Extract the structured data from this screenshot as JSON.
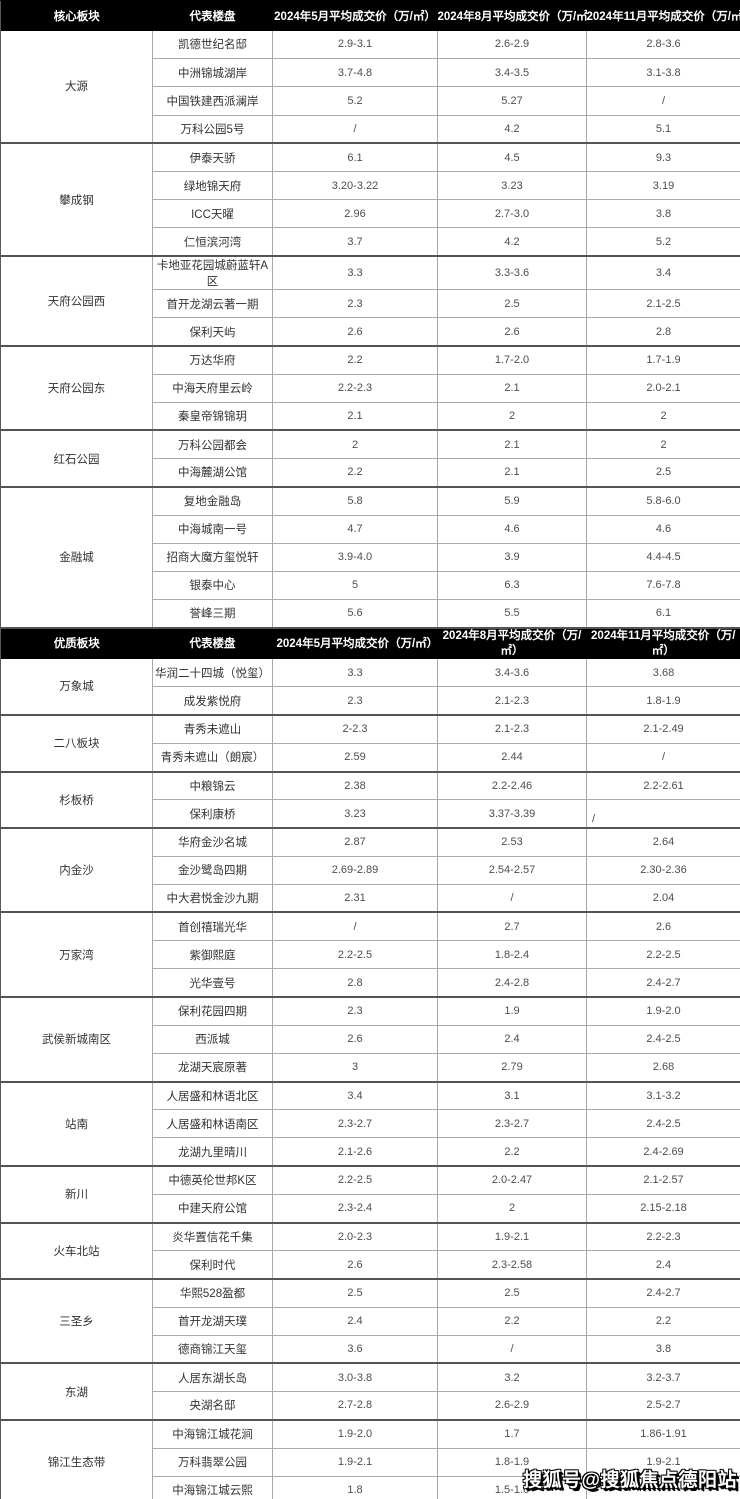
{
  "colors": {
    "header_bg": "#000000",
    "header_text": "#ffffff",
    "body_text": "#404040",
    "border_light": "#ababab",
    "border_dark": "#545454"
  },
  "watermark": "搜狐号@搜狐焦点德阳站",
  "sections": [
    {
      "id": "core",
      "headers": [
        "核心板块",
        "代表楼盘",
        "2024年5月平均成交价（万/㎡）",
        "2024年8月平均成交价（万/㎡）",
        "2024年11月平均成交价（万/㎡）"
      ],
      "groups": [
        {
          "district": "大源",
          "rows": [
            {
              "name": "凯德世纪名邸",
              "values": [
                "2.9-3.1",
                "2.6-2.9",
                "2.8-3.6"
              ]
            },
            {
              "name": "中洲锦城湖岸",
              "values": [
                "3.7-4.8",
                "3.4-3.5",
                "3.1-3.8"
              ]
            },
            {
              "name": "中国铁建西派澜岸",
              "values": [
                "5.2",
                "5.27",
                "/"
              ]
            },
            {
              "name": "万科公园5号",
              "values": [
                "/",
                "4.2",
                "5.1"
              ]
            }
          ]
        },
        {
          "district": "攀成钢",
          "rows": [
            {
              "name": "伊泰天骄",
              "values": [
                "6.1",
                "4.5",
                "9.3"
              ]
            },
            {
              "name": "绿地锦天府",
              "values": [
                "3.20-3.22",
                "3.23",
                "3.19"
              ]
            },
            {
              "name": "ICC天曜",
              "values": [
                "2.96",
                "2.7-3.0",
                "3.8"
              ]
            },
            {
              "name": "仁恒滨河湾",
              "values": [
                "3.7",
                "4.2",
                "5.2"
              ]
            }
          ]
        },
        {
          "district": "天府公园西",
          "rows": [
            {
              "name": "卡地亚花园城蔚蓝轩A区",
              "values": [
                "3.3",
                "3.3-3.6",
                "3.4"
              ]
            },
            {
              "name": "首开龙湖云著一期",
              "values": [
                "2.3",
                "2.5",
                "2.1-2.5"
              ]
            },
            {
              "name": "保利天屿",
              "values": [
                "2.6",
                "2.6",
                "2.8"
              ]
            }
          ]
        },
        {
          "district": "天府公园东",
          "rows": [
            {
              "name": "万达华府",
              "values": [
                "2.2",
                "1.7-2.0",
                "1.7-1.9"
              ]
            },
            {
              "name": "中海天府里云岭",
              "values": [
                "2.2-2.3",
                "2.1",
                "2.0-2.1"
              ]
            },
            {
              "name": "秦皇帝锦锦玥",
              "values": [
                "2.1",
                "2",
                "2"
              ]
            }
          ]
        },
        {
          "district": "红石公园",
          "rows": [
            {
              "name": "万科公园都会",
              "values": [
                "2",
                "2.1",
                "2"
              ]
            },
            {
              "name": "中海麓湖公馆",
              "values": [
                "2.2",
                "2.1",
                "2.5"
              ]
            }
          ]
        },
        {
          "district": "金融城",
          "rows": [
            {
              "name": "复地金融岛",
              "values": [
                "5.8",
                "5.9",
                "5.8-6.0"
              ]
            },
            {
              "name": "中海城南一号",
              "values": [
                "4.7",
                "4.6",
                "4.6"
              ]
            },
            {
              "name": "招商大魔方玺悦轩",
              "values": [
                "3.9-4.0",
                "3.9",
                "4.4-4.5"
              ]
            },
            {
              "name": "银泰中心",
              "values": [
                "5",
                "6.3",
                "7.6-7.8"
              ]
            },
            {
              "name": "誉峰三期",
              "values": [
                "5.6",
                "5.5",
                "6.1"
              ]
            }
          ]
        }
      ]
    },
    {
      "id": "quality",
      "headers": [
        "优质板块",
        "代表楼盘",
        "2024年5月平均成交价（万/㎡）",
        "2024年8月平均成交价（万/㎡）",
        "2024年11月平均成交价（万/㎡）"
      ],
      "groups": [
        {
          "district": "万象城",
          "rows": [
            {
              "name": "华润二十四城（悦玺）",
              "values": [
                "3.3",
                "3.4-3.6",
                "3.68"
              ]
            },
            {
              "name": "成发紫悦府",
              "values": [
                "2.3",
                "2.1-2.3",
                "1.8-1.9"
              ]
            }
          ]
        },
        {
          "district": "二八板块",
          "rows": [
            {
              "name": "青秀未遮山",
              "values": [
                "2-2.3",
                "2.1-2.3",
                "2.1-2.49"
              ]
            },
            {
              "name": "青秀未遮山（朗宸）",
              "values": [
                "2.59",
                "2.44",
                "/"
              ]
            }
          ]
        },
        {
          "district": "杉板桥",
          "rows": [
            {
              "name": "中粮锦云",
              "values": [
                "2.38",
                "2.2-2.46",
                "2.2-2.61"
              ]
            },
            {
              "name": "保利康桥",
              "values": [
                "3.23",
                "3.37-3.39",
                {
                  "text": "/",
                  "align": "left-bottom"
                }
              ]
            }
          ]
        },
        {
          "district": "内金沙",
          "rows": [
            {
              "name": "华府金沙名城",
              "values": [
                "2.87",
                "2.53",
                "2.64"
              ]
            },
            {
              "name": "金沙鹭岛四期",
              "values": [
                "2.69-2.89",
                "2.54-2.57",
                "2.30-2.36"
              ]
            },
            {
              "name": "中大君悦金沙九期",
              "values": [
                "2.31",
                "/",
                "2.04"
              ]
            }
          ]
        },
        {
          "district": "万家湾",
          "rows": [
            {
              "name": "首创禧瑞光华",
              "values": [
                "/",
                "2.7",
                "2.6"
              ]
            },
            {
              "name": "紫御熙庭",
              "values": [
                "2.2-2.5",
                "1.8-2.4",
                "2.2-2.5"
              ]
            },
            {
              "name": "光华壹号",
              "values": [
                "2.8",
                "2.4-2.8",
                "2.4-2.7"
              ]
            }
          ]
        },
        {
          "district": "武侯新城南区",
          "rows": [
            {
              "name": "保利花园四期",
              "values": [
                "2.3",
                "1.9",
                "1.9-2.0"
              ]
            },
            {
              "name": "西派城",
              "values": [
                "2.6",
                "2.4",
                "2.4-2.5"
              ]
            },
            {
              "name": "龙湖天宸原著",
              "values": [
                "3",
                "2.79",
                "2.68"
              ]
            }
          ]
        },
        {
          "district": "站南",
          "rows": [
            {
              "name": "人居盛和林语北区",
              "values": [
                "3.4",
                "3.1",
                "3.1-3.2"
              ]
            },
            {
              "name": "人居盛和林语南区",
              "values": [
                "2.3-2.7",
                "2.3-2.7",
                "2.4-2.5"
              ]
            },
            {
              "name": "龙湖九里晴川",
              "values": [
                "2.1-2.6",
                "2.2",
                "2.4-2.69"
              ]
            }
          ]
        },
        {
          "district": "新川",
          "rows": [
            {
              "name": "中德英伦世邦K区",
              "values": [
                "2.2-2.5",
                "2.0-2.47",
                "2.1-2.57"
              ]
            },
            {
              "name": "中建天府公馆",
              "values": [
                "2.3-2.4",
                "2",
                "2.15-2.18"
              ]
            }
          ]
        },
        {
          "district": "火车北站",
          "rows": [
            {
              "name": "炎华置信花千集",
              "values": [
                "2.0-2.3",
                "1.9-2.1",
                "2.2-2.3"
              ]
            },
            {
              "name": "保利时代",
              "values": [
                "2.6",
                "2.3-2.58",
                "2.4"
              ]
            }
          ]
        },
        {
          "district": "三圣乡",
          "rows": [
            {
              "name": "华熙528盈都",
              "values": [
                "2.5",
                "2.5",
                "2.4-2.7"
              ]
            },
            {
              "name": "首开龙湖天璞",
              "values": [
                "2.4",
                "2.2",
                "2.2"
              ]
            },
            {
              "name": "德商锦江天玺",
              "values": [
                "3.6",
                "/",
                "3.8"
              ]
            }
          ]
        },
        {
          "district": "东湖",
          "rows": [
            {
              "name": "人居东湖长岛",
              "values": [
                "3.0-3.8",
                "3.2",
                "3.2-3.7"
              ]
            },
            {
              "name": "央湖名邸",
              "values": [
                "2.7-2.8",
                "2.6-2.9",
                "2.5-2.7"
              ]
            }
          ]
        },
        {
          "district": "锦江生态带",
          "rows": [
            {
              "name": "中海锦江城花涧",
              "values": [
                "1.9-2.0",
                "1.7",
                "1.86-1.91"
              ]
            },
            {
              "name": "万科翡翠公园",
              "values": [
                "1.9-2.1",
                "1.8-1.9",
                "1.9-2.1"
              ]
            },
            {
              "name": "中海锦江城云熙",
              "values": [
                "1.8",
                "1.5-1.6",
                ""
              ]
            }
          ]
        }
      ]
    }
  ]
}
